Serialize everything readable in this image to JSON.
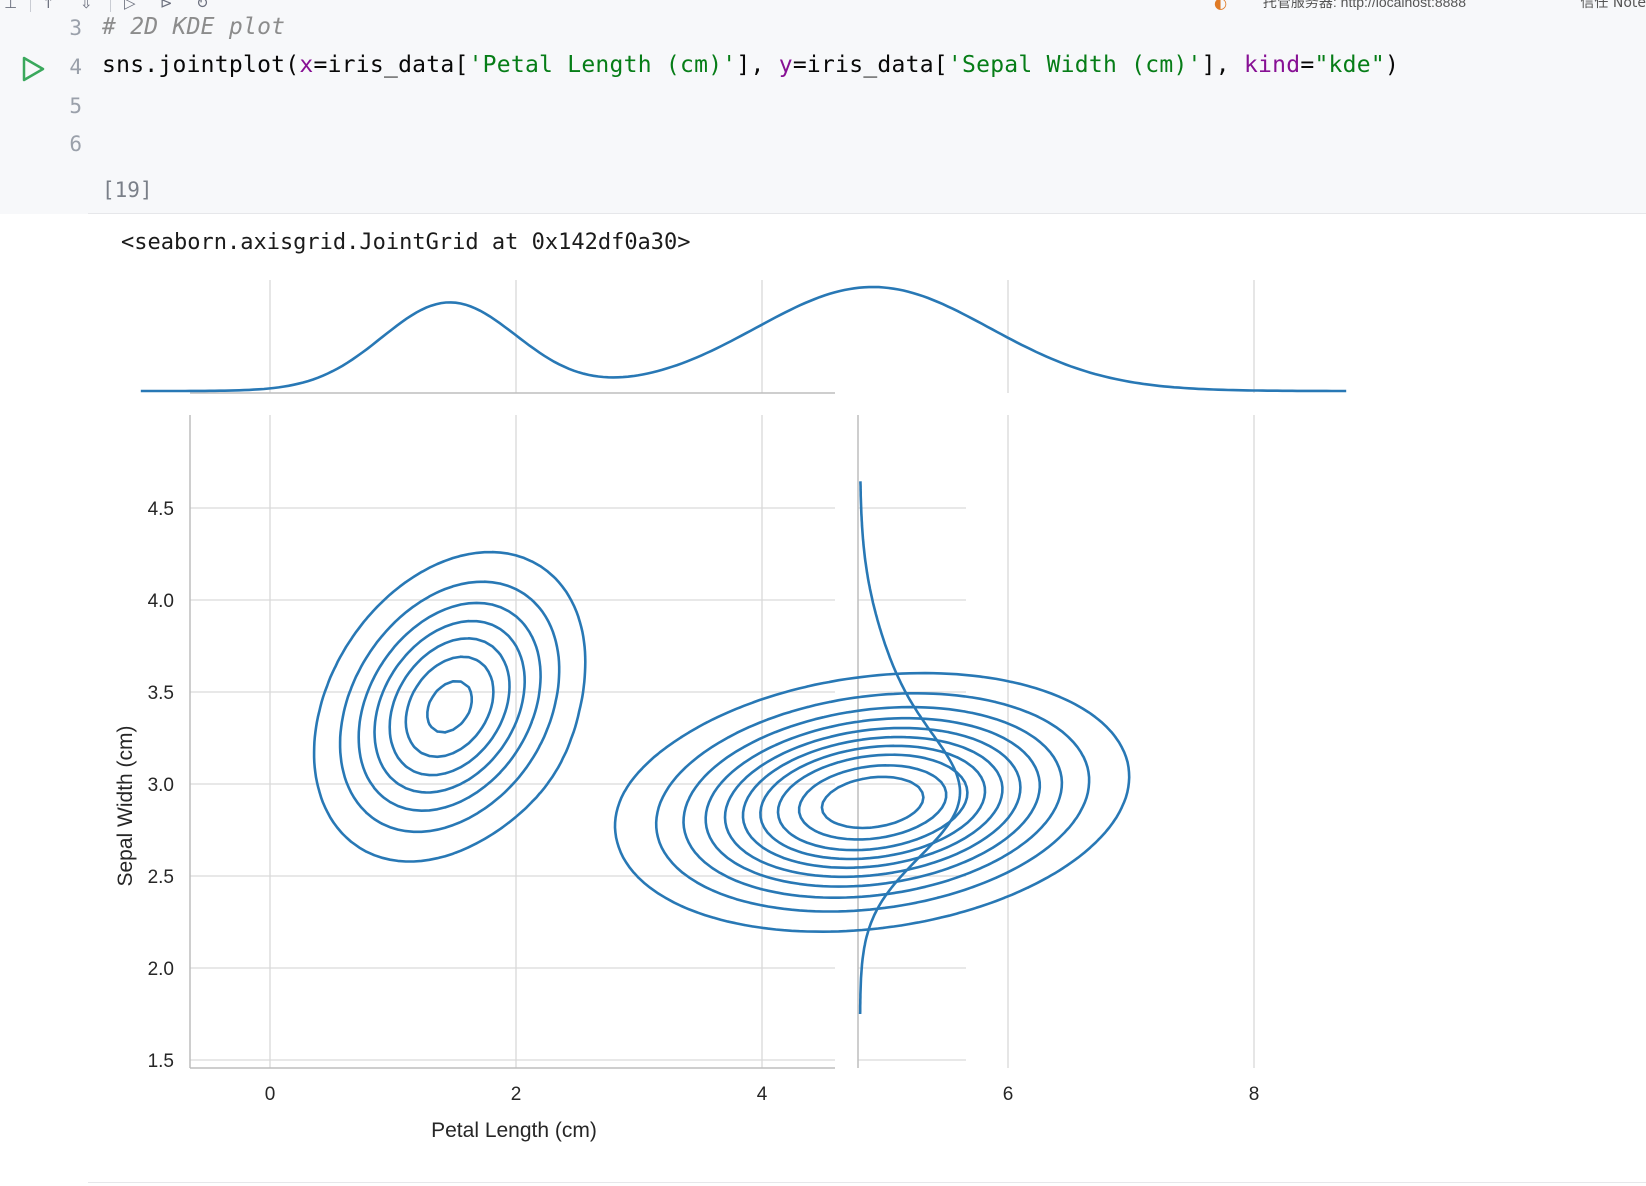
{
  "toolbar": {
    "icons": [
      "arrow-up-icon",
      "arrow-down-icon",
      "run-all-icon",
      "run-all-below-icon",
      "restart-icon"
    ],
    "server_label": "托管服务器: http://localhost:8888",
    "right_label": "信任 Note"
  },
  "code_cell": {
    "line_numbers": [
      "3",
      "4",
      "5",
      "6"
    ],
    "comment": "# 2D KDE plot",
    "code": {
      "p1": "sns.jointplot(",
      "kw_x": "x",
      "p2": "=iris_data[",
      "s1": "'Petal Length (cm)'",
      "p3": "], ",
      "kw_y": "y",
      "p4": "=iris_data[",
      "s2": "'Sepal Width (cm)'",
      "p5": "], ",
      "kw_kind": "kind",
      "p6": "=",
      "s3": "\"kde\"",
      "p7": ")"
    },
    "exec_count": "[19]"
  },
  "output": {
    "repr": "<seaborn.axisgrid.JointGrid at 0x142df0a30>"
  },
  "chart_data": {
    "type": "kde-joint",
    "xlabel": "Petal Length (cm)",
    "ylabel": "Sepal Width (cm)",
    "xlim": [
      -1.3,
      9.2
    ],
    "ylim": [
      1.45,
      4.95
    ],
    "x_ticks": [
      "0",
      "2",
      "4",
      "6",
      "8"
    ],
    "y_ticks": [
      "1.5",
      "2.0",
      "2.5",
      "3.0",
      "3.5",
      "4.0",
      "4.5"
    ],
    "grid": true,
    "line_color": "#2878b5",
    "grid_color": "#d9d9d9",
    "components": [
      {
        "mx": 1.46,
        "my": 3.42,
        "sx": 0.55,
        "sy": 0.42,
        "rho": 0.3,
        "w": 0.33
      },
      {
        "mx": 4.9,
        "my": 2.9,
        "sx": 0.95,
        "sy": 0.32,
        "rho": 0.2,
        "w": 0.67
      }
    ],
    "contour_levels": [
      0.09,
      0.18,
      0.27,
      0.36,
      0.45,
      0.54,
      0.63,
      0.72,
      0.82,
      0.91
    ]
  }
}
